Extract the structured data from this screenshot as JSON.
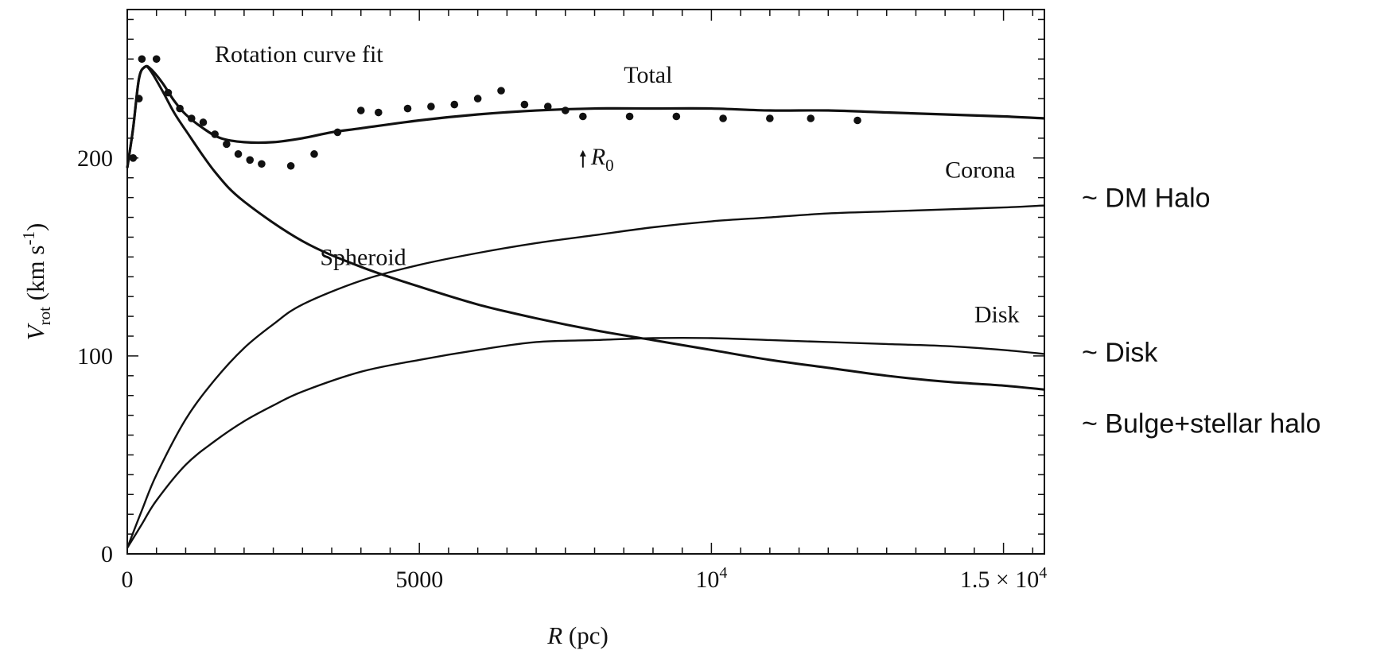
{
  "chart_data": {
    "type": "line",
    "title": "Rotation curve fit",
    "xlabel": "R (pc)",
    "ylabel": "V_rot (km s^-1)",
    "xlim": [
      0,
      15700
    ],
    "ylim": [
      0,
      275
    ],
    "x_ticks": [
      {
        "value": 0,
        "label": "0"
      },
      {
        "value": 5000,
        "label": "5000"
      },
      {
        "value": 10000,
        "label": "10",
        "sup": "4"
      },
      {
        "value": 15000,
        "label": "1.5 × 10",
        "sup": "4"
      }
    ],
    "y_ticks": [
      {
        "value": 0,
        "label": "0"
      },
      {
        "value": 100,
        "label": "100"
      },
      {
        "value": 200,
        "label": "200"
      }
    ],
    "grid": false,
    "r0_marker": {
      "label": "R",
      "sub": "0",
      "x": 7800,
      "y": 200
    },
    "observed_points": [
      [
        100,
        200
      ],
      [
        200,
        230
      ],
      [
        250,
        250
      ],
      [
        500,
        250
      ],
      [
        700,
        233
      ],
      [
        900,
        225
      ],
      [
        1100,
        220
      ],
      [
        1300,
        218
      ],
      [
        1500,
        212
      ],
      [
        1700,
        207
      ],
      [
        1900,
        202
      ],
      [
        2100,
        199
      ],
      [
        2300,
        197
      ],
      [
        2800,
        196
      ],
      [
        3200,
        202
      ],
      [
        3600,
        213
      ],
      [
        4000,
        224
      ],
      [
        4300,
        223
      ],
      [
        4800,
        225
      ],
      [
        5200,
        226
      ],
      [
        5600,
        227
      ],
      [
        6000,
        230
      ],
      [
        6400,
        234
      ],
      [
        6800,
        227
      ],
      [
        7200,
        226
      ],
      [
        7500,
        224
      ],
      [
        7800,
        221
      ],
      [
        8600,
        221
      ],
      [
        9400,
        221
      ],
      [
        10200,
        220
      ],
      [
        11000,
        220
      ],
      [
        11700,
        220
      ],
      [
        12500,
        219
      ]
    ],
    "series": [
      {
        "name": "Total",
        "x": [
          0,
          100,
          200,
          300,
          400,
          600,
          800,
          1000,
          1300,
          1600,
          2000,
          2500,
          3000,
          3500,
          4000,
          5000,
          6000,
          7000,
          8000,
          9000,
          10000,
          11000,
          12000,
          13000,
          14000,
          15000,
          15700
        ],
        "values": [
          195,
          215,
          240,
          246,
          245,
          238,
          229,
          222,
          215,
          210,
          208,
          208,
          210,
          213,
          215,
          219,
          222,
          224,
          225,
          225,
          225,
          224,
          224,
          223,
          222,
          221,
          220
        ]
      },
      {
        "name": "Spheroid",
        "x": [
          0,
          100,
          200,
          300,
          400,
          600,
          800,
          1000,
          1500,
          2000,
          3000,
          4000,
          5000,
          6000,
          7000,
          8000,
          9000,
          10000,
          11000,
          12000,
          13000,
          14000,
          15000,
          15700
        ],
        "values": [
          195,
          215,
          240,
          246,
          244,
          234,
          223,
          214,
          193,
          178,
          158,
          145,
          135,
          126,
          119,
          113,
          108,
          103,
          98,
          94,
          90,
          87,
          85,
          83
        ]
      },
      {
        "name": "Corona",
        "x": [
          0,
          250,
          500,
          1000,
          1500,
          2000,
          2500,
          3000,
          4000,
          5000,
          6000,
          7000,
          8000,
          9000,
          10000,
          11000,
          12000,
          13000,
          14000,
          15000,
          15700
        ],
        "values": [
          3,
          22,
          40,
          68,
          88,
          104,
          116,
          126,
          138,
          146,
          152,
          157,
          161,
          165,
          168,
          170,
          172,
          173,
          174,
          175,
          176
        ]
      },
      {
        "name": "Disk",
        "x": [
          0,
          250,
          500,
          1000,
          1500,
          2000,
          2500,
          3000,
          4000,
          5000,
          6000,
          7000,
          8000,
          9000,
          10000,
          11000,
          12000,
          13000,
          14000,
          15000,
          15700
        ],
        "values": [
          3,
          15,
          27,
          45,
          57,
          67,
          75,
          82,
          92,
          98,
          103,
          107,
          108,
          109,
          109,
          108,
          107,
          106,
          105,
          103,
          101
        ]
      }
    ],
    "series_labels": [
      {
        "text": "Total",
        "x": 8500,
        "y": 238
      },
      {
        "text": "Corona",
        "x": 14000,
        "y": 190
      },
      {
        "text": "Spheroid",
        "x": 3300,
        "y": 146
      },
      {
        "text": "Disk",
        "x": 14500,
        "y": 117
      }
    ],
    "annotations": [
      {
        "text": "~ DM Halo",
        "near_y": 180
      },
      {
        "text": "~ Disk",
        "near_y": 102
      },
      {
        "text": "~ Bulge+stellar halo",
        "near_y": 66
      }
    ]
  }
}
